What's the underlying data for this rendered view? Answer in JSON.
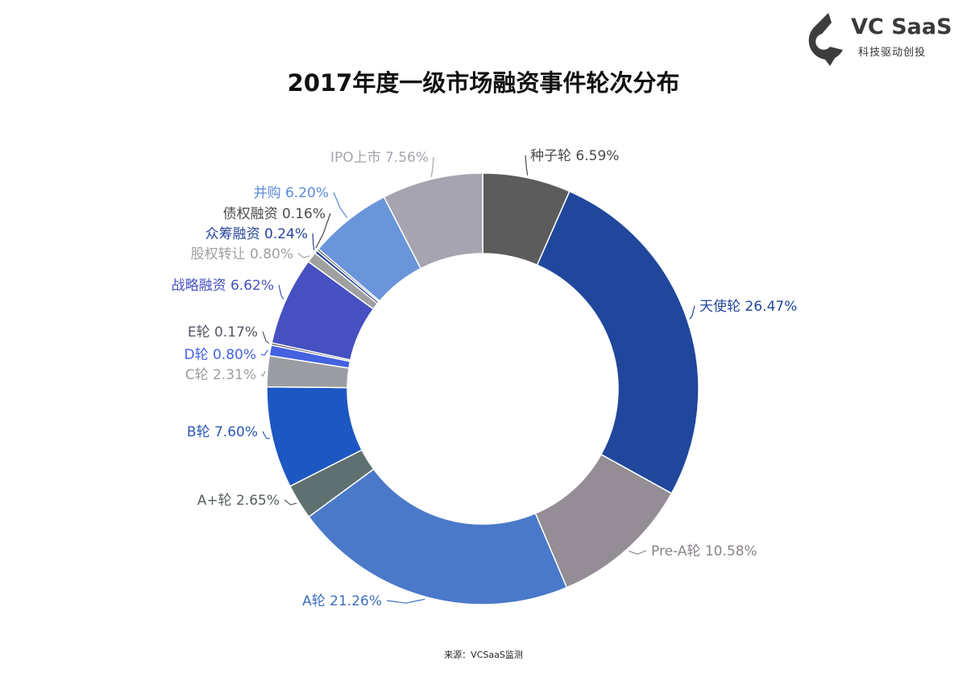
{
  "brand": {
    "name": "VC SaaS",
    "tagline": "科技驱动创投",
    "logo_icon": "vc-saas-logo-icon",
    "logo_color": "#3d3d3d"
  },
  "source": "来源：VCSaaS监测",
  "chart_data": {
    "type": "pie",
    "variant": "donut",
    "title": "2017年度一级市场融资事件轮次分布",
    "unit": "%",
    "slices": [
      {
        "label": "种子轮",
        "value": 6.59,
        "display": "6.59%",
        "color": "#5c5c5c",
        "label_color": "#4a4a4a"
      },
      {
        "label": "天使轮",
        "value": 26.47,
        "display": "26.47%",
        "color": "#20479c",
        "label_color": "#20479c"
      },
      {
        "label": "Pre-A轮",
        "value": 10.58,
        "display": "10.58%",
        "color": "#958d95",
        "label_color": "#8a838a"
      },
      {
        "label": "A轮",
        "value": 21.26,
        "display": "21.26%",
        "color": "#4a79c9",
        "label_color": "#3f6fc0"
      },
      {
        "label": "A+轮",
        "value": 2.65,
        "display": "2.65%",
        "color": "#5f7070",
        "label_color": "#555f5f"
      },
      {
        "label": "B轮",
        "value": 7.6,
        "display": "7.60%",
        "color": "#1d57c2",
        "label_color": "#2b58b8"
      },
      {
        "label": "C轮",
        "value": 2.31,
        "display": "2.31%",
        "color": "#9a9ea2",
        "label_color": "#9a9ea2"
      },
      {
        "label": "D轮",
        "value": 0.8,
        "display": "0.80%",
        "color": "#4562e0",
        "label_color": "#4562e0"
      },
      {
        "label": "E轮",
        "value": 0.17,
        "display": "0.17%",
        "color": "#555566",
        "label_color": "#555566"
      },
      {
        "label": "战略融资",
        "value": 6.62,
        "display": "6.62%",
        "color": "#4650c0",
        "label_color": "#4650c0"
      },
      {
        "label": "股权转让",
        "value": 0.8,
        "display": "0.80%",
        "color": "#a0a0a0",
        "label_color": "#a0a0a0"
      },
      {
        "label": "众筹融资",
        "value": 0.24,
        "display": "0.24%",
        "color": "#27469a",
        "label_color": "#27469a"
      },
      {
        "label": "债权融资",
        "value": 0.16,
        "display": "0.16%",
        "color": "#494949",
        "label_color": "#494949"
      },
      {
        "label": "并购",
        "value": 6.2,
        "display": "6.20%",
        "color": "#6a95db",
        "label_color": "#5a8ad8"
      },
      {
        "label": "IPO上市",
        "value": 7.56,
        "display": "7.56%",
        "color": "#a6a4b0",
        "label_color": "#a6a4b0"
      }
    ]
  }
}
